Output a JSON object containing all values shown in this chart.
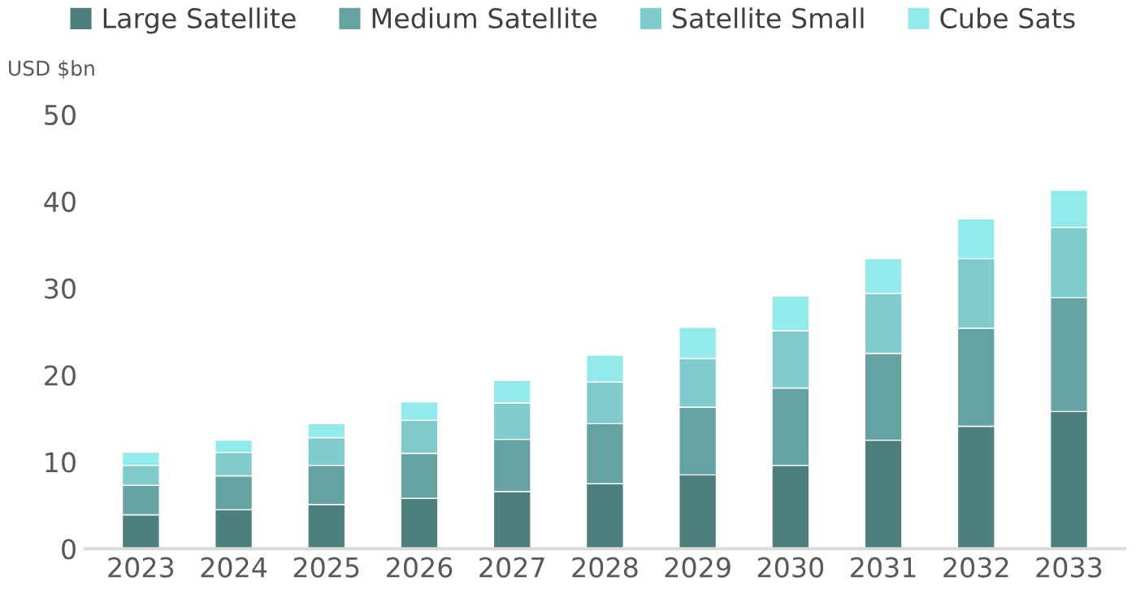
{
  "chart_data": {
    "type": "bar",
    "stacked": true,
    "ylabel": "USD $bn",
    "categories": [
      "2023",
      "2024",
      "2025",
      "2026",
      "2027",
      "2028",
      "2029",
      "2030",
      "2031",
      "2032",
      "2033"
    ],
    "series": [
      {
        "name": "Large Satellite",
        "color": "#4d7f7e",
        "values": [
          3.9,
          4.5,
          5.1,
          5.8,
          6.6,
          7.5,
          8.5,
          9.6,
          12.5,
          14.1,
          15.8
        ]
      },
      {
        "name": "Medium Satellite",
        "color": "#64a3a2",
        "values": [
          3.4,
          3.9,
          4.5,
          5.2,
          6.0,
          6.9,
          7.8,
          8.9,
          10.0,
          11.3,
          13.1
        ]
      },
      {
        "name": "Satellite Small",
        "color": "#80cccc",
        "values": [
          2.3,
          2.7,
          3.2,
          3.8,
          4.2,
          4.8,
          5.6,
          6.6,
          6.9,
          8.0,
          8.1
        ]
      },
      {
        "name": "Cube Sats",
        "color": "#92eaea",
        "values": [
          1.5,
          1.4,
          1.6,
          2.1,
          2.6,
          3.1,
          3.6,
          4.0,
          4.0,
          4.6,
          4.3
        ]
      }
    ],
    "ylim": [
      0,
      50
    ],
    "yticks": [
      0,
      10,
      20,
      30,
      40,
      50
    ],
    "grid": false,
    "legend": "top"
  }
}
